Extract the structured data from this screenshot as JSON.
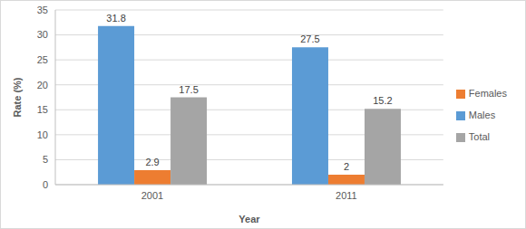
{
  "chart_data": {
    "type": "bar",
    "categories": [
      "2001",
      "2011"
    ],
    "x_label": "Year",
    "y_label": "Rate (%)",
    "series": [
      {
        "name": "Males",
        "color": "#5b9bd5",
        "values": [
          31.8,
          27.5
        ]
      },
      {
        "name": "Females",
        "color": "#ed7d31",
        "values": [
          2.9,
          2
        ]
      },
      {
        "name": "Total",
        "color": "#a5a5a5",
        "values": [
          17.5,
          15.2
        ]
      }
    ],
    "ylim": [
      0,
      35
    ],
    "yticks": [
      0,
      5,
      10,
      15,
      20,
      25,
      30,
      35
    ],
    "grid": true,
    "legend": "right",
    "data_labels": true
  }
}
